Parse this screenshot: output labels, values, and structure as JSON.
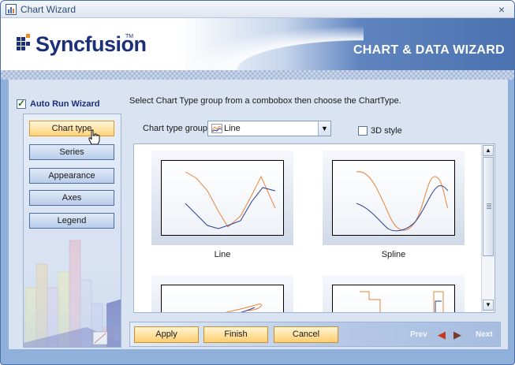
{
  "window": {
    "title": "Chart Wizard",
    "close_glyph": "×"
  },
  "header": {
    "brand": "Syncfusion",
    "trademark": "TM",
    "title": "CHART & DATA WIZARD"
  },
  "autorun": {
    "label": "Auto Run Wizard",
    "checked": true
  },
  "instruction": "Select Chart Type group from a combobox then choose the ChartType.",
  "steps": [
    {
      "label": "Chart type",
      "active": true
    },
    {
      "label": "Series",
      "active": false
    },
    {
      "label": "Appearance",
      "active": false
    },
    {
      "label": "Axes",
      "active": false
    },
    {
      "label": "Legend",
      "active": false
    }
  ],
  "chart_type_groups": {
    "label": "Chart type groups",
    "selected": "Line"
  },
  "style3d": {
    "label": "3D style",
    "checked": false
  },
  "gallery": {
    "items": [
      {
        "label": "Line",
        "icon": "line-chart-thumbnail"
      },
      {
        "label": "Spline",
        "icon": "spline-chart-thumbnail"
      },
      {
        "label": "",
        "icon": "curve-chart-thumbnail"
      },
      {
        "label": "",
        "icon": "step-line-chart-thumbnail"
      }
    ]
  },
  "footer": {
    "apply": "Apply",
    "finish": "Finish",
    "cancel": "Cancel",
    "prev": "Prev",
    "next": "Next"
  },
  "colors": {
    "frame": "#8fb0da",
    "header_brand": "#1c2f7a",
    "series_orange": "#e8843a",
    "series_navy": "#2b3f8c",
    "button_gold": "#ffce70"
  }
}
